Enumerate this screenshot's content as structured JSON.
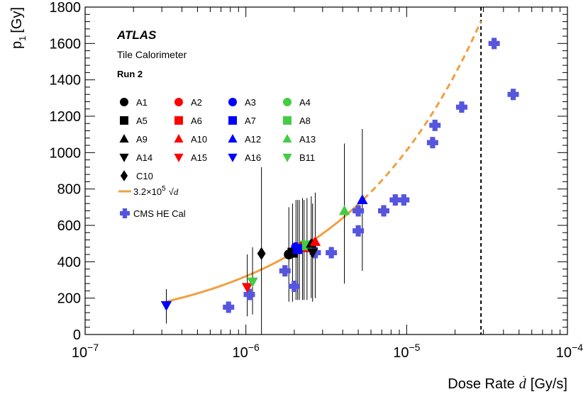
{
  "chart_data": {
    "type": "scatter",
    "title": "",
    "header": {
      "experiment": "ATLAS",
      "detector": "Tile Calorimeter",
      "run": "Run 2"
    },
    "xlabel_prefix": "Dose Rate",
    "xlabel_var": "d",
    "xlabel_unit": "[Gy/s]",
    "ylabel": "p",
    "ylabel_sub": "1",
    "ylabel_unit": "[Gy]",
    "xscale": "log",
    "xlim": [
      1e-07,
      0.0001
    ],
    "ylim": [
      0,
      1800
    ],
    "x_tick_labels": [
      {
        "base": "10",
        "exp": "−7",
        "value": 1e-07
      },
      {
        "base": "10",
        "exp": "−6",
        "value": 1e-06
      },
      {
        "base": "10",
        "exp": "−5",
        "value": 1e-05
      },
      {
        "base": "10",
        "exp": "−4",
        "value": 0.0001
      }
    ],
    "y_ticks": [
      0,
      200,
      400,
      600,
      800,
      1000,
      1200,
      1400,
      1600,
      1800
    ],
    "grid": false,
    "legend_position": "top-left",
    "vertical_line": {
      "x": 2.9e-05,
      "style": "dashed",
      "color": "#000000"
    },
    "fit": {
      "label_coef": "3.2×10",
      "label_exp": "5",
      "label_var": "d",
      "coefficient": 320000,
      "solid_range": [
        3.2e-07,
        5.4e-06
      ],
      "dashed_range": [
        5.4e-06,
        2.9e-05
      ],
      "color": "#f0a040"
    },
    "series": [
      {
        "name": "A1",
        "marker": "circle",
        "color": "#000000",
        "x": 1.85e-06,
        "y": 440,
        "err": [
          180,
          700
        ]
      },
      {
        "name": "A2",
        "marker": "circle",
        "color": "#ff0000",
        "x": 2.15e-06,
        "y": 470,
        "err": [
          190,
          740
        ]
      },
      {
        "name": "A3",
        "marker": "circle",
        "color": "#0000ff",
        "x": 2.05e-06,
        "y": 480,
        "err": [
          190,
          740
        ]
      },
      {
        "name": "A4",
        "marker": "circle",
        "color": "#44cc44",
        "x": 2.25e-06,
        "y": 490,
        "err": [
          190,
          750
        ]
      },
      {
        "name": "A5",
        "marker": "square",
        "color": "#000000",
        "x": 1.95e-06,
        "y": 450,
        "err": [
          180,
          720
        ]
      },
      {
        "name": "A6",
        "marker": "square",
        "color": "#ff0000",
        "x": 2.3e-06,
        "y": 480,
        "err": [
          190,
          740
        ]
      },
      {
        "name": "A7",
        "marker": "square",
        "color": "#0000ff",
        "x": 2.1e-06,
        "y": 470,
        "err": [
          190,
          740
        ]
      },
      {
        "name": "A8",
        "marker": "square",
        "color": "#44cc44",
        "x": 2.4e-06,
        "y": 490,
        "err": [
          190,
          750
        ]
      },
      {
        "name": "A9",
        "marker": "triangle-up",
        "color": "#000000",
        "x": 2.55e-06,
        "y": 500,
        "err": [
          200,
          760
        ]
      },
      {
        "name": "A10",
        "marker": "triangle-up",
        "color": "#ff0000",
        "x": 2.7e-06,
        "y": 510,
        "err": [
          200,
          780
        ]
      },
      {
        "name": "A12",
        "marker": "triangle-up",
        "color": "#0000ff",
        "x": 5.3e-06,
        "y": 740,
        "err": [
          350,
          1130
        ]
      },
      {
        "name": "A13",
        "marker": "triangle-up",
        "color": "#44cc44",
        "x": 4.1e-06,
        "y": 680,
        "err": [
          280,
          1050
        ]
      },
      {
        "name": "A14",
        "marker": "triangle-down",
        "color": "#000000",
        "x": 2.6e-06,
        "y": 450,
        "err": [
          180,
          720
        ]
      },
      {
        "name": "A15",
        "marker": "triangle-down",
        "color": "#ff0000",
        "x": 1.02e-06,
        "y": 260,
        "err": [
          100,
          440
        ]
      },
      {
        "name": "A16",
        "marker": "triangle-down",
        "color": "#0000ff",
        "x": 3.2e-07,
        "y": 160,
        "err": [
          60,
          250
        ]
      },
      {
        "name": "B11",
        "marker": "triangle-down",
        "color": "#44cc44",
        "x": 1.1e-06,
        "y": 290,
        "err": [
          110,
          480
        ]
      },
      {
        "name": "C10",
        "marker": "diamond",
        "color": "#000000",
        "x": 1.25e-06,
        "y": 445,
        "err": [
          0,
          920
        ]
      }
    ],
    "cms": {
      "name": "CMS HE Cal",
      "marker": "cross",
      "color": "#5555dd",
      "points": [
        {
          "x": 7.8e-07,
          "y": 150
        },
        {
          "x": 1.05e-06,
          "y": 220
        },
        {
          "x": 1.75e-06,
          "y": 350
        },
        {
          "x": 2e-06,
          "y": 265
        },
        {
          "x": 2.7e-06,
          "y": 450
        },
        {
          "x": 3.4e-06,
          "y": 450
        },
        {
          "x": 5e-06,
          "y": 570
        },
        {
          "x": 5e-06,
          "y": 680
        },
        {
          "x": 7.2e-06,
          "y": 680
        },
        {
          "x": 8.5e-06,
          "y": 740
        },
        {
          "x": 9.6e-06,
          "y": 740
        },
        {
          "x": 1.45e-05,
          "y": 1055
        },
        {
          "x": 1.5e-05,
          "y": 1150
        },
        {
          "x": 2.2e-05,
          "y": 1250
        },
        {
          "x": 3.5e-05,
          "y": 1600
        },
        {
          "x": 4.6e-05,
          "y": 1320
        }
      ]
    }
  }
}
